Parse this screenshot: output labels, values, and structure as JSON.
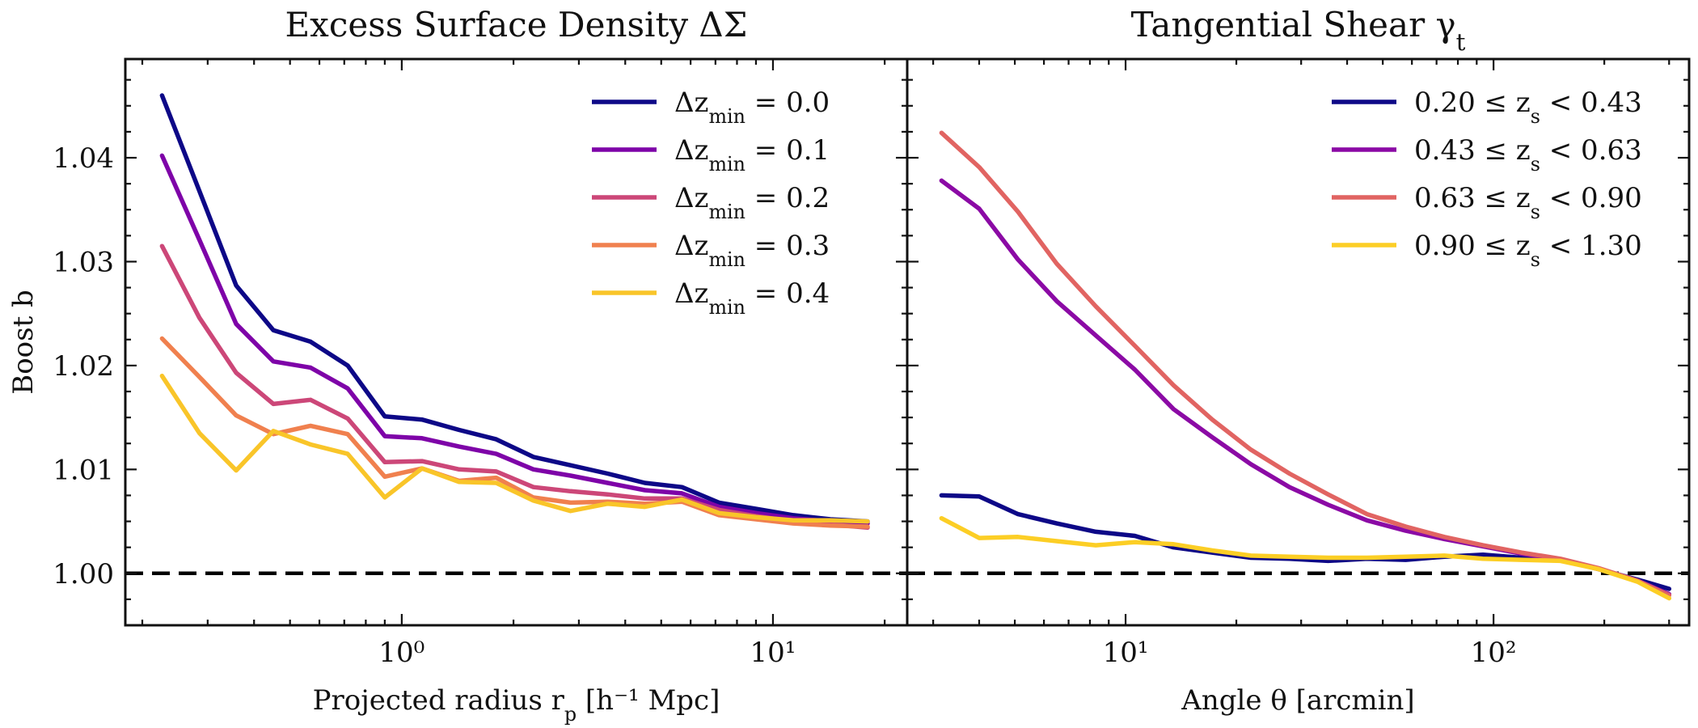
{
  "chart_data": [
    {
      "type": "line",
      "title": "Excess Surface Density ΔΣ",
      "xlabel": "Projected radius r_p [h⁻¹ Mpc]",
      "ylabel": "Boost b",
      "xscale": "log",
      "xlim": [
        0.18,
        23
      ],
      "ylim": [
        0.995,
        1.0495
      ],
      "xticks": [
        {
          "value": 1,
          "label": "10⁰"
        },
        {
          "value": 10,
          "label": "10¹"
        }
      ],
      "yticks": [
        {
          "value": 1.0,
          "label": "1.00"
        },
        {
          "value": 1.01,
          "label": "1.01"
        },
        {
          "value": 1.02,
          "label": "1.02"
        },
        {
          "value": 1.03,
          "label": "1.03"
        },
        {
          "value": 1.04,
          "label": "1.04"
        }
      ],
      "reference_line": 1.0,
      "legend_position": "top-right",
      "x": [
        0.226,
        0.285,
        0.358,
        0.451,
        0.568,
        0.715,
        0.9,
        1.134,
        1.427,
        1.797,
        2.263,
        2.849,
        3.587,
        4.516,
        5.686,
        7.159,
        9.013,
        11.35,
        14.29,
        17.99
      ],
      "series": [
        {
          "name": "Δz_min = 0.0",
          "color": "#0d0887",
          "values": [
            1.046,
            1.0368,
            1.0277,
            1.0234,
            1.0223,
            1.02,
            1.0151,
            1.0148,
            1.0138,
            1.0129,
            1.0112,
            1.0104,
            1.0096,
            1.0087,
            1.0083,
            1.0068,
            1.0062,
            1.0056,
            1.0052,
            1.005
          ]
        },
        {
          "name": "Δz_min = 0.1",
          "color": "#7e03a8",
          "values": [
            1.0402,
            1.0321,
            1.024,
            1.0204,
            1.0198,
            1.0178,
            1.0132,
            1.013,
            1.0122,
            1.0115,
            1.01,
            1.0094,
            1.0087,
            1.008,
            1.0077,
            1.0064,
            1.0058,
            1.0053,
            1.005,
            1.0048
          ]
        },
        {
          "name": "Δz_min = 0.2",
          "color": "#cc4778",
          "values": [
            1.0315,
            1.0246,
            1.0193,
            1.0163,
            1.0167,
            1.0149,
            1.0107,
            1.0108,
            1.01,
            1.0098,
            1.0083,
            1.0079,
            1.0076,
            1.0072,
            1.0072,
            1.0061,
            1.0055,
            1.005,
            1.0047,
            1.0044
          ]
        },
        {
          "name": "Δz_min = 0.3",
          "color": "#f0804e",
          "values": [
            1.0226,
            1.0189,
            1.0152,
            1.0134,
            1.0142,
            1.0134,
            1.0093,
            1.0101,
            1.0089,
            1.0092,
            1.0073,
            1.0068,
            1.0069,
            1.0067,
            1.0069,
            1.0056,
            1.0052,
            1.0048,
            1.0046,
            1.0045
          ]
        },
        {
          "name": "Δz_min = 0.4",
          "color": "#f9c529",
          "values": [
            1.019,
            1.0135,
            1.0099,
            1.0137,
            1.0124,
            1.0115,
            1.0073,
            1.0101,
            1.0088,
            1.0087,
            1.007,
            1.006,
            1.0067,
            1.0064,
            1.0071,
            1.0058,
            1.0054,
            1.0051,
            1.0051,
            1.005
          ]
        }
      ]
    },
    {
      "type": "line",
      "title": "Tangential Shear γ_t",
      "xlabel": "Angle θ [arcmin]",
      "ylabel": "",
      "xscale": "log",
      "xlim": [
        2.55,
        340
      ],
      "ylim": [
        0.995,
        1.0495
      ],
      "xticks": [
        {
          "value": 10,
          "label": "10¹"
        },
        {
          "value": 100,
          "label": "10²"
        }
      ],
      "yticks": [
        {
          "value": 1.0,
          "label": ""
        },
        {
          "value": 1.01,
          "label": ""
        },
        {
          "value": 1.02,
          "label": ""
        },
        {
          "value": 1.03,
          "label": ""
        },
        {
          "value": 1.04,
          "label": ""
        }
      ],
      "reference_line": 1.0,
      "legend_position": "top-right",
      "x": [
        3.16,
        4.0,
        5.1,
        6.5,
        8.3,
        10.6,
        13.5,
        17.2,
        21.9,
        27.9,
        35.5,
        45.3,
        57.7,
        73.5,
        93.6,
        119.0,
        152.0,
        193.0,
        246.0,
        300.0
      ],
      "series": [
        {
          "name": "0.20 ≤ z_s < 0.43",
          "color": "#0d0887",
          "values": [
            1.0075,
            1.0074,
            1.0057,
            1.0048,
            1.004,
            1.0036,
            1.0025,
            1.002,
            1.0015,
            1.0014,
            1.0012,
            1.0014,
            1.0013,
            1.0016,
            1.0018,
            1.0015,
            1.0013,
            1.0004,
            0.9994,
            0.9985
          ]
        },
        {
          "name": "0.43 ≤ z_s < 0.63",
          "color": "#8b0aa5",
          "values": [
            1.0378,
            1.0351,
            1.0302,
            1.0262,
            1.0229,
            1.0196,
            1.0158,
            1.0131,
            1.0105,
            1.0083,
            1.0066,
            1.0051,
            1.0041,
            1.0033,
            1.0026,
            1.0019,
            1.0013,
            1.0004,
            0.9993,
            0.998
          ]
        },
        {
          "name": "0.63 ≤ z_s < 0.90",
          "color": "#e16462",
          "values": [
            1.0424,
            1.0391,
            1.0348,
            1.0298,
            1.0257,
            1.0219,
            1.0181,
            1.0148,
            1.0119,
            1.0096,
            1.0076,
            1.0057,
            1.0045,
            1.0035,
            1.0027,
            1.002,
            1.0014,
            1.0005,
            0.9993,
            0.9979
          ]
        },
        {
          "name": "0.90 ≤ z_s < 1.30",
          "color": "#fcce25",
          "values": [
            1.0053,
            1.0034,
            1.0035,
            1.0031,
            1.0027,
            1.003,
            1.0028,
            1.0022,
            1.0017,
            1.0016,
            1.0015,
            1.0015,
            1.0016,
            1.0017,
            1.0014,
            1.0013,
            1.0012,
            1.0004,
            0.9992,
            0.9976
          ]
        }
      ]
    }
  ]
}
